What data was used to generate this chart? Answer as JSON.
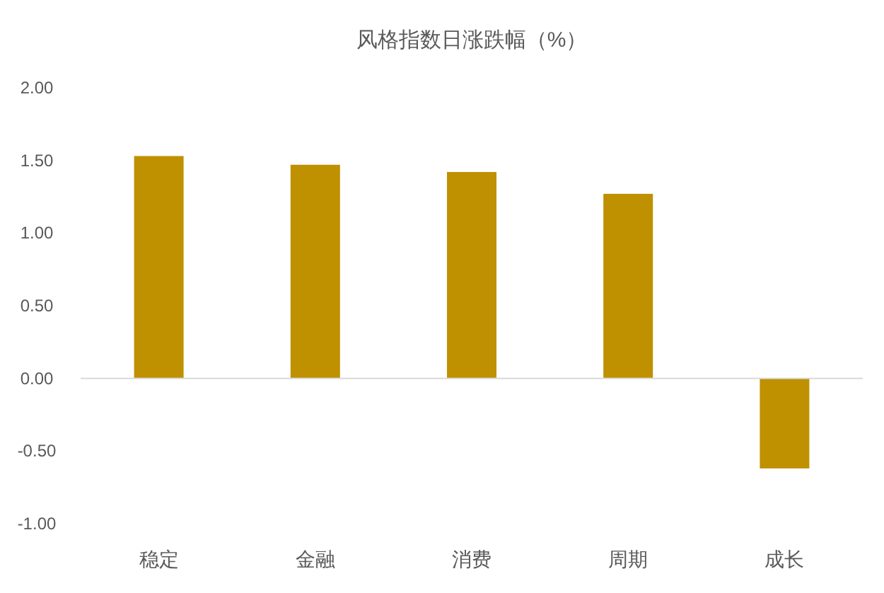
{
  "chart_data": {
    "type": "bar",
    "title": "风格指数日涨跌幅（%）",
    "categories": [
      "稳定",
      "金融",
      "消费",
      "周期",
      "成长"
    ],
    "values": [
      1.53,
      1.47,
      1.42,
      1.27,
      -0.62
    ],
    "color": "#bf9000",
    "ylim": [
      -1.0,
      2.0
    ],
    "yticks": [
      {
        "value": -1.0,
        "label": "-1.00"
      },
      {
        "value": -0.5,
        "label": "-0.50"
      },
      {
        "value": 0,
        "label": "0.00"
      },
      {
        "value": 0.5,
        "label": "0.50"
      },
      {
        "value": 1.0,
        "label": "1.00"
      },
      {
        "value": 1.5,
        "label": "1.50"
      },
      {
        "value": 2.0,
        "label": "2.00"
      }
    ]
  }
}
